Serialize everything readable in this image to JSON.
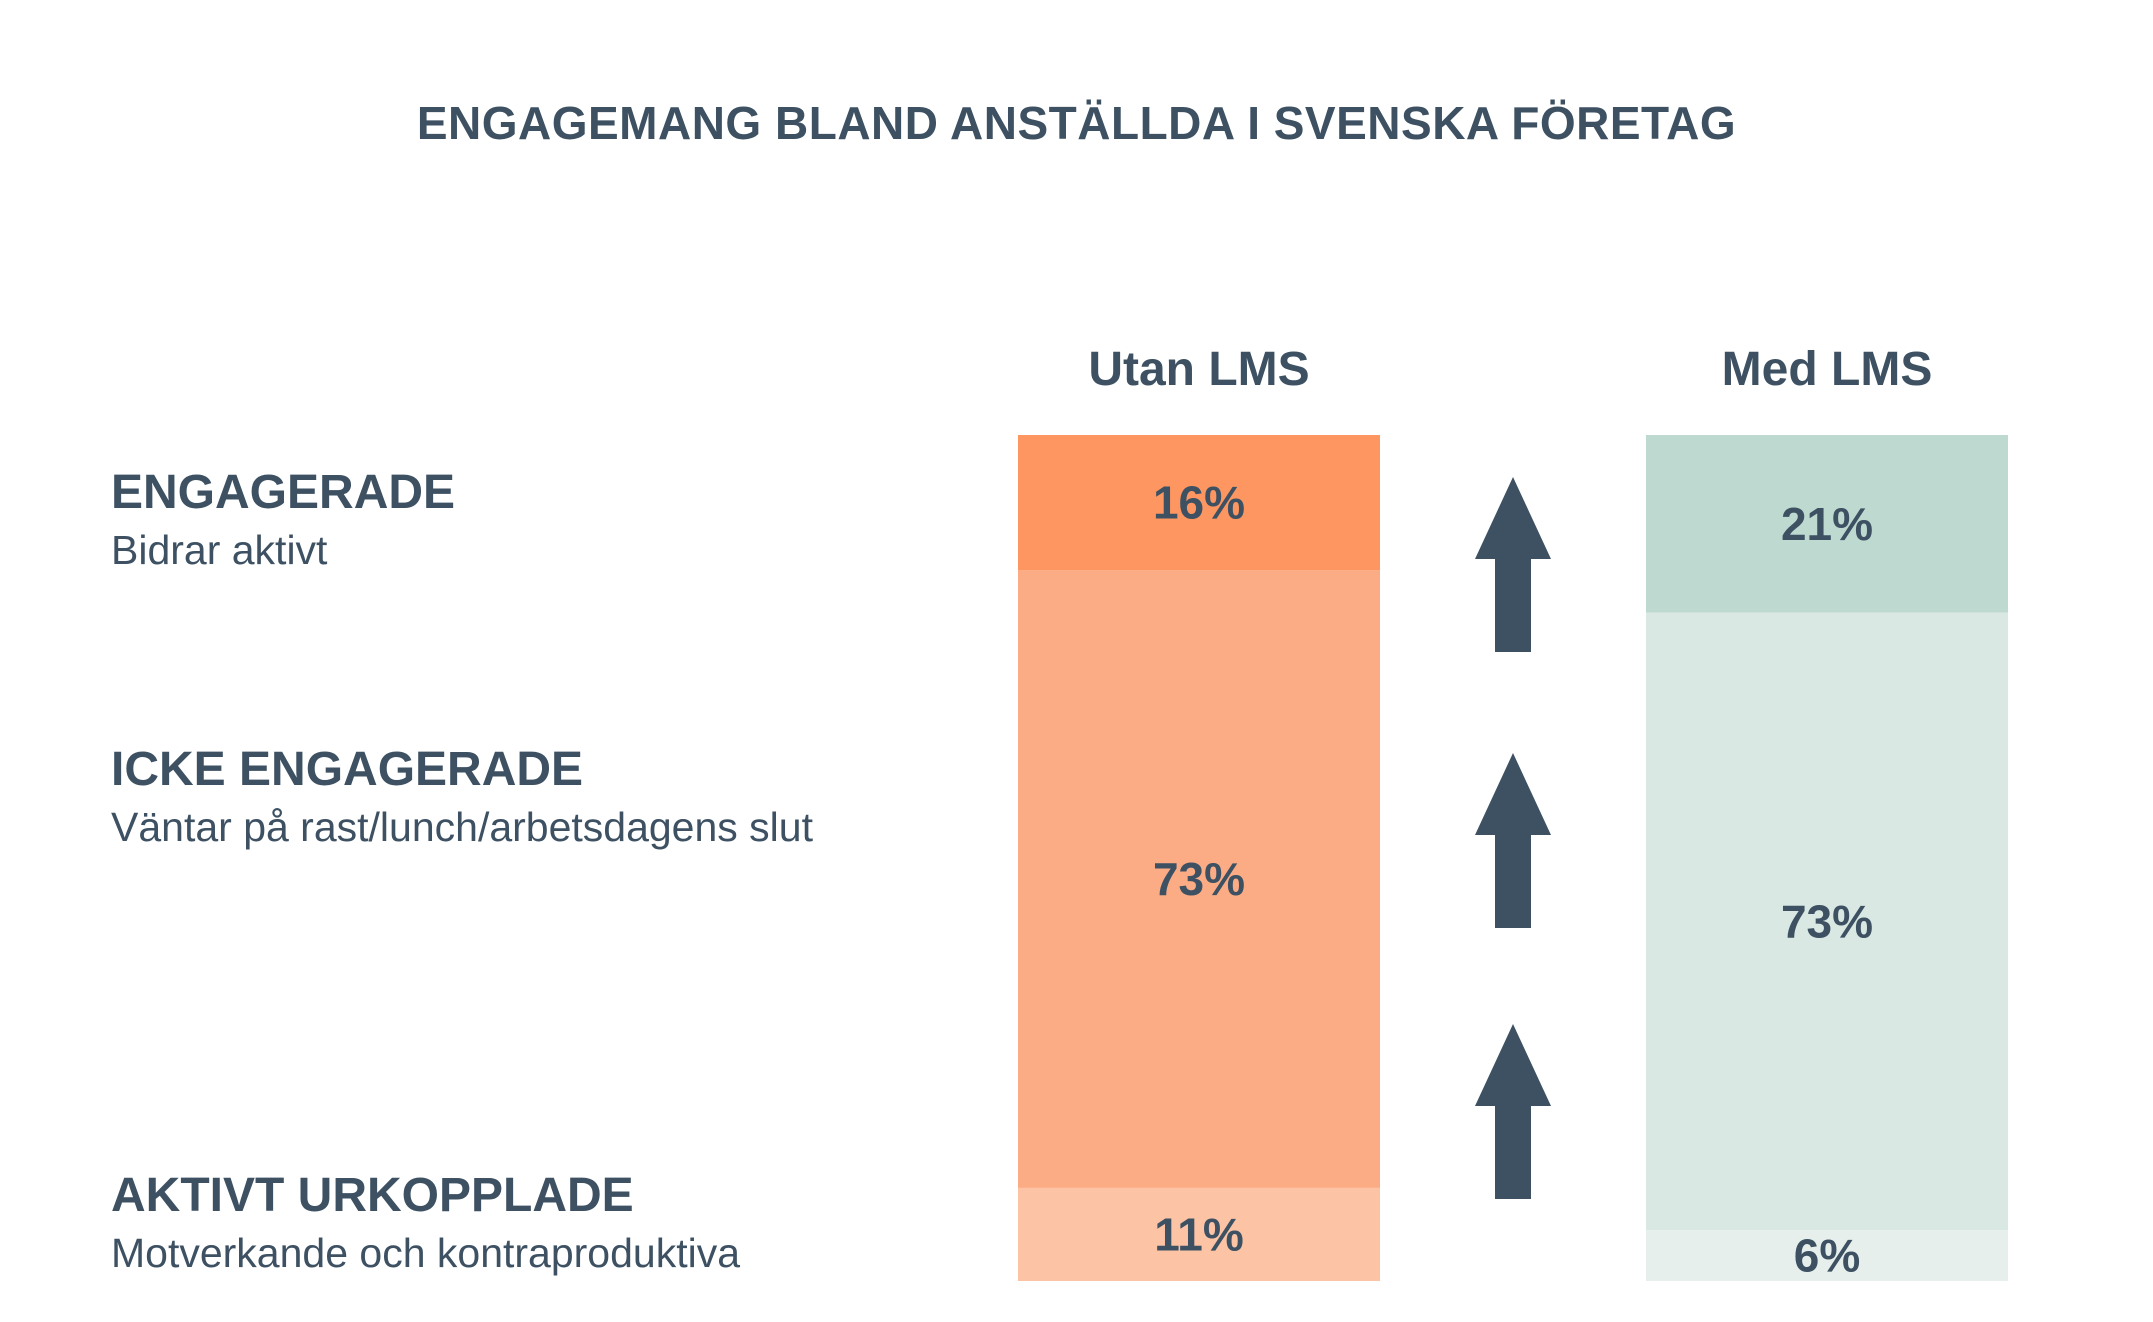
{
  "chart_data": {
    "type": "bar",
    "stacked": true,
    "title": "ENGAGEMANG BLAND ANSTÄLLDA I SVENSKA FÖRETAG",
    "categories": [
      "Utan LMS",
      "Med LMS"
    ],
    "series": [
      {
        "name": "ENGAGERADE",
        "description": "Bidrar aktivt",
        "values": [
          16,
          21
        ],
        "colors": [
          "#fd9661",
          "#bedad0"
        ]
      },
      {
        "name": "ICKE ENGAGERADE",
        "description": "Väntar på rast/lunch/arbetsdagens slut",
        "values": [
          73,
          73
        ],
        "colors": [
          "#fbac85",
          "#d9e8e2"
        ]
      },
      {
        "name": "AKTIVT URKOPPLADE",
        "description": "Motverkande och kontraproduktiva",
        "values": [
          11,
          6
        ],
        "colors": [
          "#fcc3a5",
          "#e6efeb"
        ]
      }
    ],
    "value_labels": [
      [
        "16%",
        "73%",
        "11%"
      ],
      [
        "21%",
        "73%",
        "6%"
      ]
    ],
    "arrows": [
      "up",
      "up",
      "up"
    ],
    "arrow_color": "#3d5163"
  }
}
